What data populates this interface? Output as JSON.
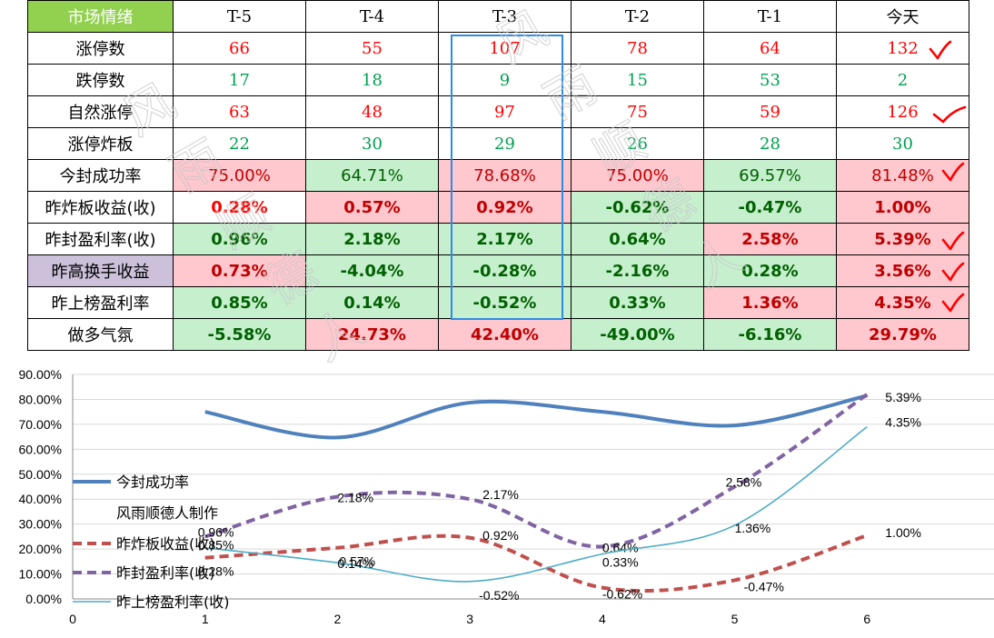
{
  "table": {
    "header": [
      "市场情绪",
      "T-5",
      "T-4",
      "T-3",
      "T-2",
      "T-1",
      "今天"
    ],
    "rows": [
      {
        "label": "涨停数",
        "kind": "num",
        "values": [
          "66",
          "55",
          "107",
          "78",
          "64",
          "132"
        ],
        "colors": [
          "red",
          "red",
          "red",
          "red",
          "red",
          "red"
        ],
        "bgs": [
          "",
          "",
          "",
          "",
          "",
          ""
        ]
      },
      {
        "label": "跌停数",
        "kind": "num",
        "values": [
          "17",
          "18",
          "9",
          "15",
          "53",
          "2"
        ],
        "colors": [
          "green",
          "green",
          "green",
          "green",
          "green",
          "green"
        ],
        "bgs": [
          "",
          "",
          "",
          "",
          "",
          ""
        ]
      },
      {
        "label": "自然涨停",
        "kind": "num",
        "values": [
          "63",
          "48",
          "97",
          "75",
          "59",
          "126"
        ],
        "colors": [
          "red",
          "red",
          "red",
          "red",
          "red",
          "red"
        ],
        "bgs": [
          "",
          "",
          "",
          "",
          "",
          ""
        ]
      },
      {
        "label": "涨停炸板",
        "kind": "num",
        "values": [
          "22",
          "30",
          "29",
          "26",
          "28",
          "30"
        ],
        "colors": [
          "green",
          "green",
          "green",
          "green",
          "green",
          "green"
        ],
        "bgs": [
          "",
          "",
          "",
          "",
          "",
          ""
        ]
      },
      {
        "label": "今封成功率",
        "kind": "pct",
        "values": [
          "75.00%",
          "64.71%",
          "78.68%",
          "75.00%",
          "69.57%",
          "81.48%"
        ],
        "colors": [
          "dred",
          "dgreen",
          "dred",
          "dred",
          "dgreen",
          "dred"
        ],
        "bgs": [
          "pink",
          "green",
          "pink",
          "pink",
          "green",
          "pink"
        ]
      },
      {
        "label": "昨炸板收益(收)",
        "kind": "pctb",
        "values": [
          "0.28%",
          "0.57%",
          "0.92%",
          "-0.62%",
          "-0.47%",
          "1.00%"
        ],
        "colors": [
          "red",
          "dred",
          "dred",
          "dgreen",
          "dgreen",
          "dred"
        ],
        "bgs": [
          "white",
          "pink",
          "pink",
          "green",
          "green",
          "pink"
        ]
      },
      {
        "label": "昨封盈利率(收)",
        "kind": "pctb",
        "values": [
          "0.96%",
          "2.18%",
          "2.17%",
          "0.64%",
          "2.58%",
          "5.39%"
        ],
        "colors": [
          "dgreen",
          "dgreen",
          "dgreen",
          "dgreen",
          "dred",
          "dred"
        ],
        "bgs": [
          "green",
          "green",
          "green",
          "green",
          "pink",
          "pink"
        ]
      },
      {
        "label": "昨高换手收益",
        "kind": "pctb",
        "values": [
          "0.73%",
          "-4.04%",
          "-0.28%",
          "-2.16%",
          "0.28%",
          "3.56%"
        ],
        "colors": [
          "dred",
          "dgreen",
          "dgreen",
          "dgreen",
          "dgreen",
          "dred"
        ],
        "bgs": [
          "pink",
          "green",
          "green",
          "green",
          "green",
          "pink"
        ]
      },
      {
        "label": "昨上榜盈利率",
        "kind": "pctb",
        "values": [
          "0.85%",
          "0.14%",
          "-0.52%",
          "0.33%",
          "1.36%",
          "4.35%"
        ],
        "colors": [
          "dgreen",
          "dgreen",
          "dgreen",
          "dgreen",
          "dred",
          "dred"
        ],
        "bgs": [
          "green",
          "green",
          "green",
          "green",
          "pink",
          "pink"
        ]
      },
      {
        "label": "做多气氛",
        "kind": "pctb",
        "values": [
          "-5.58%",
          "24.73%",
          "42.40%",
          "-49.00%",
          "-6.16%",
          "29.79%"
        ],
        "colors": [
          "dgreen",
          "dred",
          "dred",
          "dgreen",
          "dgreen",
          "dred"
        ],
        "bgs": [
          "green",
          "pink",
          "pink",
          "green",
          "green",
          "pink"
        ]
      }
    ]
  },
  "watermark": "风雨顺德人",
  "colors": {
    "red": "#ff0000",
    "green": "#00a050",
    "dred": "#c00000",
    "dgreen": "#006100",
    "pink": "#ffc7ce",
    "lightgreen": "#c6efce",
    "header_green": "#92d050",
    "lavender": "#ccc0da",
    "highlight": "#2e8ce6",
    "check": "#ff0000"
  },
  "chart_data": {
    "type": "line",
    "x": [
      1,
      2,
      3,
      4,
      5,
      6
    ],
    "xlim": [
      0,
      7
    ],
    "x_ticks": [
      "0",
      "1",
      "2",
      "3",
      "4",
      "5",
      "6"
    ],
    "ylim": [
      0,
      90
    ],
    "y_ticks": [
      "0.00%",
      "10.00%",
      "20.00%",
      "30.00%",
      "40.00%",
      "50.00%",
      "60.00%",
      "70.00%",
      "80.00%",
      "90.00%"
    ],
    "series": [
      {
        "name": "今封成功率",
        "values": [
          75.0,
          64.71,
          78.68,
          75.0,
          69.57,
          81.48
        ],
        "color": "#4f81bd",
        "style": "solid-thick",
        "labels": [
          "",
          "",
          "",
          "",
          "",
          ""
        ]
      },
      {
        "name": "昨炸板收益(收)",
        "values": [
          16.5,
          20.5,
          24.5,
          4.5,
          7.5,
          25.5
        ],
        "color": "#c0504d",
        "style": "dashed",
        "labels": [
          "0.28%",
          "0.57%",
          "0.92%",
          "-0.62%",
          "-0.47%",
          "1.00%"
        ]
      },
      {
        "name": "昨封盈利率(收)",
        "values": [
          25.0,
          41.0,
          40.0,
          21.0,
          45.0,
          82.0
        ],
        "color": "#8064a2",
        "style": "dashed",
        "labels": [
          "0.96%",
          "2.18%",
          "2.17%",
          "0.64%",
          "2.58%",
          "5.39%"
        ]
      },
      {
        "name": "昨上榜盈利率(收)",
        "values": [
          20.5,
          14.5,
          7.0,
          18.0,
          29.5,
          69.0
        ],
        "color": "#4bacc6",
        "style": "thin",
        "labels": [
          "0.85%",
          "0.14%",
          "-0.52%",
          "0.33%",
          "1.36%",
          "4.35%"
        ]
      }
    ],
    "legend_note": "风雨顺德人制作",
    "legend": "left, middle"
  }
}
